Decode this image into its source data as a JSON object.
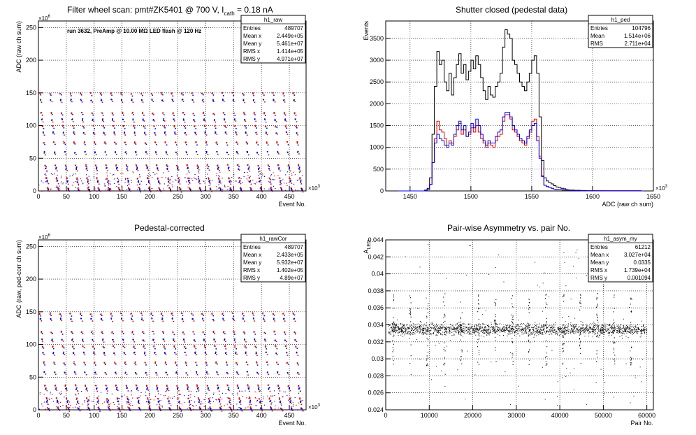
{
  "chart_data": [
    {
      "type": "scatter",
      "title": "Filter wheel scan: pmt#ZK5401 @   700 V, I",
      "title_sub": "cath",
      "title_tail": " = 0.18 nA",
      "annotation": "run 3632, PreAmp @ 10.00 MΩ LED flash @  120 Hz",
      "xlabel": "Event No.",
      "ylabel": "ADC (raw ch sum)",
      "x_exp": "×10",
      "x_exp_pow": "3",
      "y_exp": "×10",
      "y_exp_pow": "6",
      "xlim": [
        0,
        480
      ],
      "ylim": [
        0,
        260
      ],
      "xticks": [
        "0",
        "50",
        "100",
        "150",
        "200",
        "250",
        "300",
        "350",
        "400",
        "450"
      ],
      "yticks": [
        "0",
        "50",
        "100",
        "150",
        "200",
        "250"
      ],
      "grid": true,
      "levels": [
        150,
        140,
        120,
        110,
        100,
        90,
        75,
        60,
        40,
        35,
        20,
        15,
        5,
        3
      ],
      "n_cycles": 26,
      "colors": {
        "series_a": "#e00000",
        "series_b": "#0000e0"
      },
      "stats": {
        "name": "h1_raw",
        "rows": [
          [
            "Entries",
            "489707"
          ],
          [
            "Mean x",
            "2.449e+05"
          ],
          [
            "Mean y",
            "5.461e+07"
          ],
          [
            "RMS x",
            "1.414e+05"
          ],
          [
            "RMS y",
            "4.971e+07"
          ]
        ]
      }
    },
    {
      "type": "line",
      "title": "Shutter closed (pedestal data)",
      "xlabel": "ADC (raw ch sum)",
      "ylabel": "Events",
      "x_exp": "×10",
      "x_exp_pow": "3",
      "xlim": [
        1430,
        1650
      ],
      "ylim": [
        0,
        3900
      ],
      "xticks": [
        "1450",
        "1500",
        "1550",
        "1600",
        "1650"
      ],
      "yticks": [
        "0",
        "500",
        "1000",
        "1500",
        "2000",
        "2500",
        "3000",
        "3500"
      ],
      "grid": true,
      "bin_width": 2,
      "series": [
        {
          "color": "#000000",
          "x": [
            1440,
            1460,
            1462,
            1464,
            1466,
            1468,
            1470,
            1472,
            1474,
            1476,
            1478,
            1480,
            1482,
            1484,
            1486,
            1488,
            1490,
            1492,
            1494,
            1496,
            1498,
            1500,
            1502,
            1504,
            1506,
            1508,
            1510,
            1512,
            1514,
            1516,
            1518,
            1520,
            1522,
            1524,
            1526,
            1528,
            1530,
            1532,
            1534,
            1536,
            1538,
            1540,
            1542,
            1544,
            1546,
            1548,
            1550,
            1552,
            1554,
            1556,
            1558,
            1560,
            1562,
            1564,
            1566,
            1568,
            1570,
            1572,
            1574,
            1576,
            1578,
            1580,
            1585,
            1590,
            1595,
            1600,
            1605,
            1610,
            1640
          ],
          "y": [
            0,
            0,
            20,
            60,
            300,
            1300,
            2400,
            3200,
            2900,
            3000,
            2500,
            2300,
            2700,
            2200,
            2600,
            2900,
            3150,
            2700,
            2900,
            2550,
            2750,
            3000,
            2800,
            3100,
            2900,
            2600,
            2300,
            2100,
            2400,
            2200,
            2150,
            2400,
            2500,
            2700,
            3300,
            3700,
            3600,
            3500,
            3000,
            2900,
            2700,
            2500,
            2400,
            2300,
            2500,
            2700,
            3000,
            3100,
            2700,
            1700,
            700,
            300,
            230,
            190,
            160,
            120,
            90,
            80,
            60,
            50,
            30,
            20,
            15,
            10,
            5,
            3,
            1,
            0,
            0
          ]
        },
        {
          "color": "#e00000",
          "x": [
            1440,
            1460,
            1462,
            1464,
            1466,
            1468,
            1470,
            1472,
            1474,
            1476,
            1478,
            1480,
            1482,
            1484,
            1486,
            1488,
            1490,
            1492,
            1494,
            1496,
            1498,
            1500,
            1502,
            1504,
            1506,
            1508,
            1510,
            1512,
            1514,
            1516,
            1518,
            1520,
            1522,
            1524,
            1526,
            1528,
            1530,
            1532,
            1534,
            1536,
            1538,
            1540,
            1542,
            1544,
            1546,
            1548,
            1550,
            1552,
            1554,
            1556,
            1558,
            1560,
            1562,
            1564,
            1566,
            1568,
            1570,
            1575,
            1580,
            1590,
            1640
          ],
          "y": [
            0,
            0,
            10,
            30,
            150,
            650,
            1200,
            1600,
            1400,
            1350,
            1200,
            1050,
            1150,
            1100,
            1250,
            1400,
            1550,
            1300,
            1400,
            1250,
            1300,
            1450,
            1350,
            1500,
            1350,
            1200,
            1100,
            1000,
            1100,
            1050,
            1000,
            1150,
            1250,
            1300,
            1600,
            1750,
            1750,
            1650,
            1400,
            1350,
            1250,
            1150,
            1100,
            1050,
            1200,
            1350,
            1600,
            1650,
            1250,
            800,
            350,
            130,
            100,
            80,
            60,
            40,
            30,
            20,
            10,
            5,
            0
          ]
        },
        {
          "color": "#0000e0",
          "x": [
            1440,
            1460,
            1462,
            1464,
            1466,
            1468,
            1470,
            1472,
            1474,
            1476,
            1478,
            1480,
            1482,
            1484,
            1486,
            1488,
            1490,
            1492,
            1494,
            1496,
            1498,
            1500,
            1502,
            1504,
            1506,
            1508,
            1510,
            1512,
            1514,
            1516,
            1518,
            1520,
            1522,
            1524,
            1526,
            1528,
            1530,
            1532,
            1534,
            1536,
            1538,
            1540,
            1542,
            1544,
            1546,
            1548,
            1550,
            1552,
            1554,
            1556,
            1558,
            1560,
            1562,
            1564,
            1566,
            1568,
            1570,
            1575,
            1580,
            1590,
            1640
          ],
          "y": [
            0,
            0,
            10,
            30,
            150,
            650,
            1100,
            1300,
            1200,
            1150,
            1050,
            1000,
            1100,
            1050,
            1300,
            1500,
            1600,
            1400,
            1500,
            1250,
            1350,
            1550,
            1450,
            1650,
            1500,
            1300,
            1150,
            1050,
            1150,
            1100,
            1100,
            1250,
            1350,
            1400,
            1700,
            1800,
            1800,
            1700,
            1500,
            1400,
            1300,
            1200,
            1150,
            1100,
            1250,
            1400,
            1500,
            1550,
            1150,
            750,
            330,
            130,
            100,
            80,
            60,
            40,
            30,
            20,
            10,
            5,
            0
          ]
        }
      ],
      "stats": {
        "name": "h1_ped",
        "rows": [
          [
            "Entries",
            "104796"
          ],
          [
            "Mean",
            "1.514e+06"
          ],
          [
            "RMS",
            "2.711e+04"
          ]
        ]
      }
    },
    {
      "type": "scatter",
      "title": "Pedestal-corrected",
      "xlabel": "Event No.",
      "ylabel": "ADC (raw, ped-corr ch sum)",
      "x_exp": "×10",
      "x_exp_pow": "3",
      "y_exp": "×10",
      "y_exp_pow": "6",
      "xlim": [
        0,
        480
      ],
      "ylim": [
        0,
        260
      ],
      "xticks": [
        "0",
        "50",
        "100",
        "150",
        "200",
        "250",
        "300",
        "350",
        "400",
        "450"
      ],
      "yticks": [
        "0",
        "50",
        "100",
        "150",
        "200",
        "250"
      ],
      "grid": true,
      "levels": [
        148,
        140,
        120,
        108,
        98,
        88,
        73,
        58,
        38,
        33,
        18,
        13,
        4,
        2
      ],
      "n_cycles": 26,
      "colors": {
        "series_a": "#e00000",
        "series_b": "#0000e0"
      },
      "stats": {
        "name": "h1_rawCor",
        "rows": [
          [
            "Entries",
            "489707"
          ],
          [
            "Mean x",
            "2.433e+05"
          ],
          [
            "Mean y",
            "5.932e+07"
          ],
          [
            "RMS x",
            "1.402e+05"
          ],
          [
            "RMS y",
            "4.89e+07"
          ]
        ]
      }
    },
    {
      "type": "scatter",
      "title": "Pair-wise Asymmetry vs. pair No.",
      "xlabel": "Pair No.",
      "ylabel": "A",
      "ylabel_sub": "LED",
      "xlim": [
        0,
        61500
      ],
      "ylim": [
        0.024,
        0.044
      ],
      "xticks": [
        "0",
        "10000",
        "20000",
        "30000",
        "40000",
        "50000",
        "60000"
      ],
      "yticks": [
        "0.024",
        "0.026",
        "0.028",
        "0.03",
        "0.032",
        "0.034",
        "0.036",
        "0.038",
        "0.04",
        "0.042",
        "0.044"
      ],
      "grid": true,
      "band_center": 0.0335,
      "band_halfwidth": 0.0012,
      "spike_every": 3900,
      "stats": {
        "name": "h1_asym_my",
        "rows": [
          [
            "Entries",
            "61212"
          ],
          [
            "Mean x",
            "3.027e+04"
          ],
          [
            "Mean y",
            "0.0335"
          ],
          [
            "RMS x",
            "1.739e+04"
          ],
          [
            "RMS y",
            "0.001094"
          ]
        ]
      }
    }
  ]
}
